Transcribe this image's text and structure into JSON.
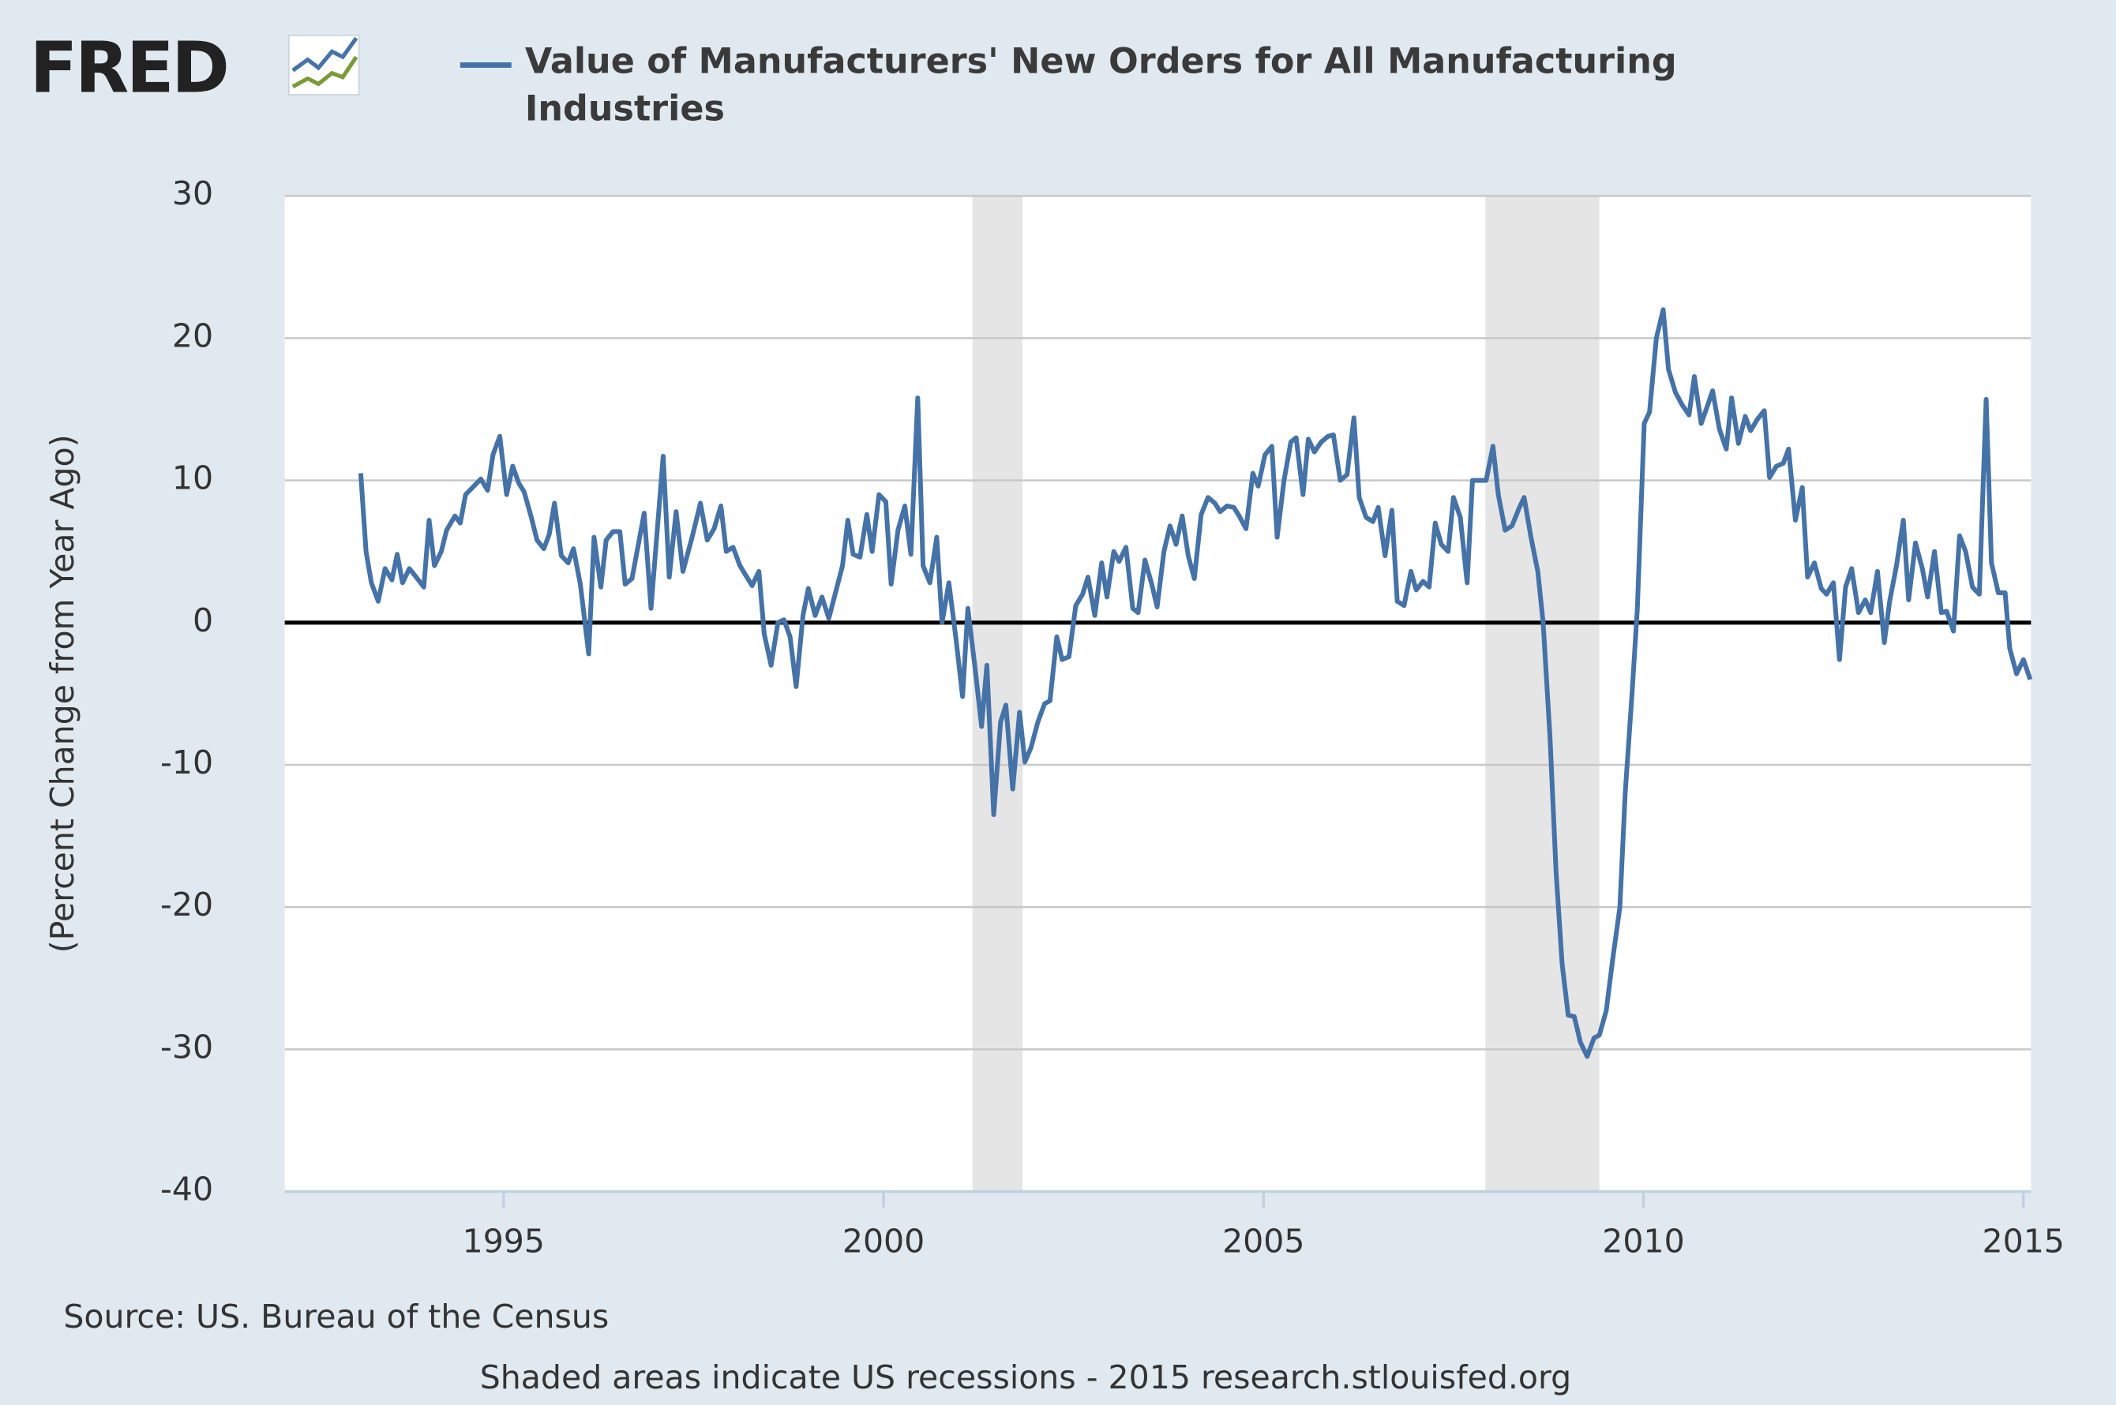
{
  "logo": "FRED",
  "chart_data": {
    "type": "line",
    "title": "Value of Manufacturers' New Orders for All Manufacturing Industries",
    "y_label": "(Percent Change from Year Ago)",
    "source": "Source: US. Bureau of the Census",
    "note": "Shaded areas indicate US recessions - 2015 research.stlouisfed.org",
    "xlim": [
      1992.12,
      2015.1
    ],
    "xticks": [
      1995,
      2000,
      2005,
      2010,
      2015
    ],
    "ylim": [
      -40,
      30
    ],
    "yticks": [
      -40,
      -30,
      -20,
      -10,
      0,
      10,
      20,
      30
    ],
    "grid": true,
    "recessions": [
      [
        2001.17,
        2001.83
      ],
      [
        2007.92,
        2009.42
      ]
    ],
    "x": [
      1993.12,
      1993.19,
      1993.26,
      1993.35,
      1993.44,
      1993.53,
      1993.6,
      1993.67,
      1993.76,
      1993.85,
      1993.95,
      1994.02,
      1994.09,
      1994.18,
      1994.25,
      1994.36,
      1994.43,
      1994.5,
      1994.61,
      1994.7,
      1994.79,
      1994.86,
      1994.95,
      1995.04,
      1995.12,
      1995.2,
      1995.27,
      1995.36,
      1995.44,
      1995.53,
      1995.6,
      1995.67,
      1995.76,
      1995.85,
      1995.92,
      1996.01,
      1996.12,
      1996.19,
      1996.28,
      1996.35,
      1996.44,
      1996.53,
      1996.6,
      1996.69,
      1996.85,
      1996.94,
      1997.1,
      1997.18,
      1997.27,
      1997.36,
      1997.49,
      1997.59,
      1997.68,
      1997.77,
      1997.86,
      1997.93,
      1998.02,
      1998.11,
      1998.27,
      1998.36,
      1998.43,
      1998.52,
      1998.61,
      1998.69,
      1998.77,
      1998.85,
      1998.94,
      1999.01,
      1999.1,
      1999.19,
      1999.28,
      1999.46,
      1999.53,
      1999.6,
      1999.69,
      1999.78,
      1999.85,
      1999.94,
      2000.03,
      2000.1,
      2000.19,
      2000.28,
      2000.36,
      2000.45,
      2000.52,
      2000.61,
      2000.7,
      2000.77,
      2000.86,
      2000.95,
      2001.04,
      2001.11,
      2001.2,
      2001.29,
      2001.36,
      2001.45,
      2001.54,
      2001.61,
      2001.7,
      2001.79,
      2001.86,
      2001.94,
      2002.03,
      2002.12,
      2002.19,
      2002.28,
      2002.35,
      2002.44,
      2002.53,
      2002.62,
      2002.69,
      2002.78,
      2002.87,
      2002.94,
      2003.03,
      2003.1,
      2003.19,
      2003.28,
      2003.35,
      2003.44,
      2003.53,
      2003.6,
      2003.69,
      2003.77,
      2003.85,
      2003.93,
      2004.01,
      2004.09,
      2004.18,
      2004.27,
      2004.36,
      2004.43,
      2004.52,
      2004.61,
      2004.68,
      2004.77,
      2004.86,
      2004.93,
      2005.02,
      2005.11,
      2005.18,
      2005.27,
      2005.36,
      2005.43,
      2005.52,
      2005.59,
      2005.67,
      2005.76,
      2005.85,
      2005.92,
      2006.01,
      2006.1,
      2006.19,
      2006.26,
      2006.35,
      2006.44,
      2006.51,
      2006.6,
      2006.69,
      2006.76,
      2006.85,
      2006.94,
      2007.01,
      2007.1,
      2007.18,
      2007.26,
      2007.34,
      2007.43,
      2007.5,
      2007.59,
      2007.68,
      2007.75,
      2007.84,
      2007.93,
      2008.02,
      2008.09,
      2008.18,
      2008.27,
      2008.36,
      2008.43,
      2008.52,
      2008.61,
      2008.68,
      2008.77,
      2008.85,
      2008.93,
      2009.01,
      2009.09,
      2009.17,
      2009.26,
      2009.35,
      2009.42,
      2009.51,
      2009.6,
      2009.69,
      2009.76,
      2009.85,
      2009.92,
      2010.01,
      2010.08,
      2010.17,
      2010.26,
      2010.33,
      2010.42,
      2010.51,
      2010.6,
      2010.67,
      2010.76,
      2010.84,
      2010.91,
      2011.0,
      2011.09,
      2011.16,
      2011.25,
      2011.34,
      2011.41,
      2011.5,
      2011.59,
      2011.66,
      2011.75,
      2011.84,
      2011.91,
      2012.0,
      2012.09,
      2012.16,
      2012.25,
      2012.34,
      2012.41,
      2012.5,
      2012.58,
      2012.66,
      2012.74,
      2012.83,
      2012.92,
      2012.99,
      2013.08,
      2013.17,
      2013.24,
      2013.33,
      2013.42,
      2013.49,
      2013.58,
      2013.67,
      2013.74,
      2013.83,
      2013.92,
      2013.99,
      2014.08,
      2014.16,
      2014.24,
      2014.33,
      2014.42,
      2014.51,
      2014.58,
      2014.67,
      2014.76,
      2014.82,
      2014.91,
      2015.0,
      2015.09
    ],
    "series": [
      {
        "name": "Value of Manufacturers' New Orders for All Manufacturing Industries",
        "color": "#4572a7",
        "values": [
          10.5,
          5,
          2.8,
          1.5,
          3.8,
          3,
          4.8,
          2.8,
          3.8,
          3.2,
          2.5,
          7.2,
          4,
          5,
          6.5,
          7.5,
          7,
          9,
          9.6,
          10.1,
          9.3,
          11.8,
          13.1,
          9,
          11,
          9.8,
          9.2,
          7.5,
          5.8,
          5.2,
          6.2,
          8.4,
          4.7,
          4.2,
          5.2,
          2.7,
          -2.2,
          6,
          2.5,
          5.8,
          6.4,
          6.4,
          2.7,
          3.1,
          7.7,
          1,
          11.7,
          3.2,
          7.8,
          3.6,
          6.2,
          8.4,
          5.8,
          6.6,
          8.2,
          5,
          5.3,
          4,
          2.6,
          3.6,
          -0.8,
          -3,
          0,
          0.2,
          -1,
          -4.5,
          0.5,
          2.4,
          0.5,
          1.8,
          0.3,
          4,
          7.2,
          4.8,
          4.6,
          7.6,
          5,
          9,
          8.5,
          2.7,
          6.5,
          8.2,
          4.8,
          15.8,
          4,
          2.8,
          6,
          0,
          2.8,
          -1,
          -5.2,
          1,
          -3,
          -7.3,
          -3,
          -13.5,
          -7,
          -5.8,
          -11.7,
          -6.3,
          -9.8,
          -8.8,
          -7,
          -5.7,
          -5.5,
          -1,
          -2.6,
          -2.4,
          1.2,
          2,
          3.2,
          0.5,
          4.2,
          1.8,
          5,
          4.3,
          5.3,
          1,
          0.7,
          4.4,
          2.7,
          1.1,
          5,
          6.8,
          5.5,
          7.5,
          4.7,
          3.1,
          7.6,
          8.8,
          8.4,
          7.8,
          8.2,
          8.1,
          7.5,
          6.6,
          10.5,
          9.6,
          11.8,
          12.4,
          6,
          10,
          12.7,
          13,
          9,
          12.9,
          12,
          12.7,
          13.1,
          13.2,
          10,
          10.4,
          14.4,
          8.8,
          7.4,
          7.1,
          8.1,
          4.7,
          7.9,
          1.5,
          1.2,
          3.6,
          2.3,
          2.9,
          2.5,
          7,
          5.5,
          5,
          8.8,
          7.4,
          2.8,
          10,
          10,
          10,
          12.4,
          9,
          6.5,
          6.8,
          8,
          8.8,
          6,
          3.6,
          0,
          -8,
          -17.5,
          -24,
          -27.6,
          -27.7,
          -29.5,
          -30.5,
          -29.2,
          -29,
          -27.3,
          -23.5,
          -20,
          -12,
          -5,
          1,
          14,
          14.8,
          20,
          22,
          17.8,
          16.2,
          15.3,
          14.6,
          17.3,
          14,
          15.2,
          16.3,
          13.6,
          12.2,
          15.8,
          12.6,
          14.5,
          13.5,
          14.3,
          14.9,
          10.2,
          11,
          11.2,
          12.2,
          7.2,
          9.5,
          3.2,
          4.2,
          2.4,
          2,
          2.8,
          -2.6,
          2.5,
          3.8,
          0.7,
          1.6,
          0.7,
          3.6,
          -1.4,
          1.5,
          4,
          7.2,
          1.6,
          5.6,
          3.8,
          1.8,
          5,
          0.7,
          0.8,
          -0.6,
          6.1,
          5,
          2.5,
          2,
          15.7,
          4.2,
          2.1,
          2.1,
          -1.8,
          -3.6,
          -2.6,
          -4
        ]
      }
    ]
  }
}
